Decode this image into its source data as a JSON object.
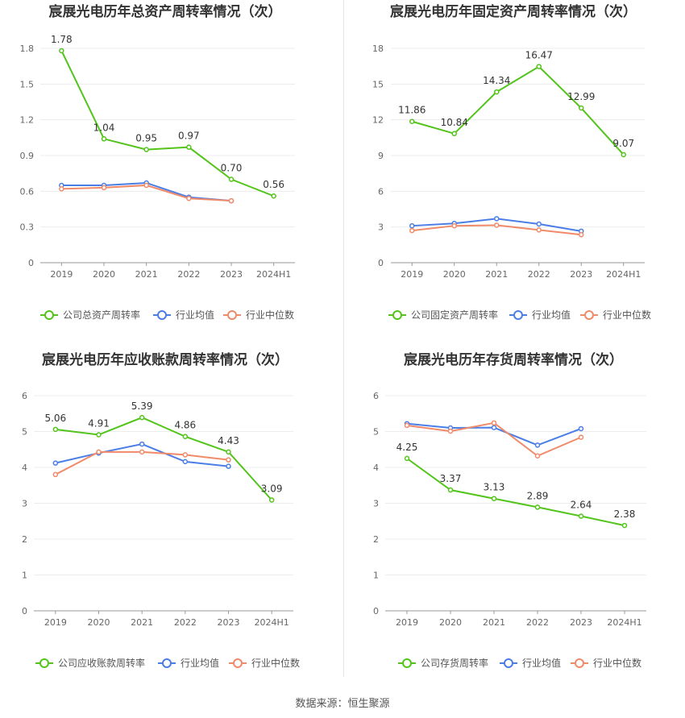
{
  "colors": {
    "company": "#52c41a",
    "avg": "#4a7ee6",
    "median": "#f08a68"
  },
  "source": "数据来源：恒生聚源",
  "chart_data": [
    {
      "type": "line",
      "title": "宸展光电历年总资产周转率情况（次）",
      "categories": [
        "2019",
        "2020",
        "2021",
        "2022",
        "2023",
        "2024H1"
      ],
      "ylim": [
        0,
        1.8
      ],
      "yticks": [
        "0",
        "0.3",
        "0.6",
        "0.9",
        "1.2",
        "1.5",
        "1.8"
      ],
      "grid": true,
      "legend": "bottom",
      "series": [
        {
          "name": "公司总资产周转率",
          "role": "company",
          "values": [
            1.78,
            1.04,
            0.95,
            0.97,
            0.7,
            0.56
          ],
          "labels": [
            "1.78",
            "1.04",
            "0.95",
            "0.97",
            "0.70",
            "0.56"
          ]
        },
        {
          "name": "行业均值",
          "role": "avg",
          "values": [
            0.65,
            0.65,
            0.67,
            0.55,
            0.52,
            null
          ]
        },
        {
          "name": "行业中位数",
          "role": "median",
          "values": [
            0.62,
            0.63,
            0.65,
            0.54,
            0.52,
            null
          ]
        }
      ]
    },
    {
      "type": "line",
      "title": "宸展光电历年固定资产周转率情况（次）",
      "categories": [
        "2019",
        "2020",
        "2021",
        "2022",
        "2023",
        "2024H1"
      ],
      "ylim": [
        0,
        18
      ],
      "yticks": [
        "0",
        "3",
        "6",
        "9",
        "12",
        "15",
        "18"
      ],
      "grid": true,
      "legend": "bottom",
      "series": [
        {
          "name": "公司固定资产周转率",
          "role": "company",
          "values": [
            11.86,
            10.84,
            14.34,
            16.47,
            12.99,
            9.07
          ],
          "labels": [
            "11.86",
            "10.84",
            "14.34",
            "16.47",
            "12.99",
            "9.07"
          ]
        },
        {
          "name": "行业均值",
          "role": "avg",
          "values": [
            3.1,
            3.3,
            3.7,
            3.25,
            2.65,
            null
          ]
        },
        {
          "name": "行业中位数",
          "role": "median",
          "values": [
            2.7,
            3.1,
            3.15,
            2.75,
            2.35,
            null
          ]
        }
      ]
    },
    {
      "type": "line",
      "title": "宸展光电历年应收账款周转率情况（次）",
      "categories": [
        "2019",
        "2020",
        "2021",
        "2022",
        "2023",
        "2024H1"
      ],
      "ylim": [
        0,
        6
      ],
      "yticks": [
        "0",
        "1",
        "2",
        "3",
        "4",
        "5",
        "6"
      ],
      "grid": true,
      "legend": "bottom",
      "series": [
        {
          "name": "公司应收账款周转率",
          "role": "company",
          "values": [
            5.06,
            4.91,
            5.39,
            4.86,
            4.43,
            3.09
          ],
          "labels": [
            "5.06",
            "4.91",
            "5.39",
            "4.86",
            "4.43",
            "3.09"
          ]
        },
        {
          "name": "行业均值",
          "role": "avg",
          "values": [
            4.12,
            4.4,
            4.65,
            4.16,
            4.03,
            null
          ]
        },
        {
          "name": "行业中位数",
          "role": "median",
          "values": [
            3.8,
            4.43,
            4.43,
            4.35,
            4.21,
            null
          ]
        }
      ]
    },
    {
      "type": "line",
      "title": "宸展光电历年存货周转率情况（次）",
      "categories": [
        "2019",
        "2020",
        "2021",
        "2022",
        "2023",
        "2024H1"
      ],
      "ylim": [
        0,
        6
      ],
      "yticks": [
        "0",
        "1",
        "2",
        "3",
        "4",
        "5",
        "6"
      ],
      "grid": true,
      "legend": "bottom",
      "series": [
        {
          "name": "公司存货周转率",
          "role": "company",
          "values": [
            4.25,
            3.37,
            3.13,
            2.89,
            2.64,
            2.38
          ],
          "labels": [
            "4.25",
            "3.37",
            "3.13",
            "2.89",
            "2.64",
            "2.38"
          ]
        },
        {
          "name": "行业均值",
          "role": "avg",
          "values": [
            5.22,
            5.1,
            5.11,
            4.62,
            5.08,
            null
          ]
        },
        {
          "name": "行业中位数",
          "role": "median",
          "values": [
            5.17,
            5.01,
            5.24,
            4.32,
            4.84,
            null
          ]
        }
      ]
    }
  ]
}
